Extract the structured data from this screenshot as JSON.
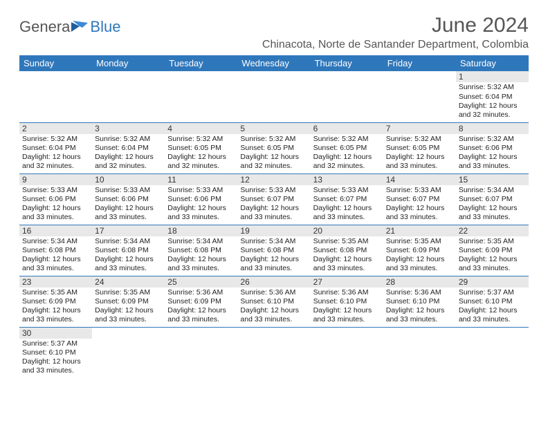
{
  "logo": {
    "text1": "Genera",
    "text2": "Blue"
  },
  "title": "June 2024",
  "subtitle": "Chinacota, Norte de Santander Department, Colombia",
  "columns": [
    "Sunday",
    "Monday",
    "Tuesday",
    "Wednesday",
    "Thursday",
    "Friday",
    "Saturday"
  ],
  "header_bg": "#2f77bb",
  "daynum_bg": "#e8e8e8",
  "border_color": "#2f77bb",
  "weeks": [
    [
      null,
      null,
      null,
      null,
      null,
      null,
      {
        "n": "1",
        "sr": "5:32 AM",
        "ss": "6:04 PM",
        "dl": "12 hours and 32 minutes."
      }
    ],
    [
      {
        "n": "2",
        "sr": "5:32 AM",
        "ss": "6:04 PM",
        "dl": "12 hours and 32 minutes."
      },
      {
        "n": "3",
        "sr": "5:32 AM",
        "ss": "6:04 PM",
        "dl": "12 hours and 32 minutes."
      },
      {
        "n": "4",
        "sr": "5:32 AM",
        "ss": "6:05 PM",
        "dl": "12 hours and 32 minutes."
      },
      {
        "n": "5",
        "sr": "5:32 AM",
        "ss": "6:05 PM",
        "dl": "12 hours and 32 minutes."
      },
      {
        "n": "6",
        "sr": "5:32 AM",
        "ss": "6:05 PM",
        "dl": "12 hours and 32 minutes."
      },
      {
        "n": "7",
        "sr": "5:32 AM",
        "ss": "6:05 PM",
        "dl": "12 hours and 33 minutes."
      },
      {
        "n": "8",
        "sr": "5:32 AM",
        "ss": "6:06 PM",
        "dl": "12 hours and 33 minutes."
      }
    ],
    [
      {
        "n": "9",
        "sr": "5:33 AM",
        "ss": "6:06 PM",
        "dl": "12 hours and 33 minutes."
      },
      {
        "n": "10",
        "sr": "5:33 AM",
        "ss": "6:06 PM",
        "dl": "12 hours and 33 minutes."
      },
      {
        "n": "11",
        "sr": "5:33 AM",
        "ss": "6:06 PM",
        "dl": "12 hours and 33 minutes."
      },
      {
        "n": "12",
        "sr": "5:33 AM",
        "ss": "6:07 PM",
        "dl": "12 hours and 33 minutes."
      },
      {
        "n": "13",
        "sr": "5:33 AM",
        "ss": "6:07 PM",
        "dl": "12 hours and 33 minutes."
      },
      {
        "n": "14",
        "sr": "5:33 AM",
        "ss": "6:07 PM",
        "dl": "12 hours and 33 minutes."
      },
      {
        "n": "15",
        "sr": "5:34 AM",
        "ss": "6:07 PM",
        "dl": "12 hours and 33 minutes."
      }
    ],
    [
      {
        "n": "16",
        "sr": "5:34 AM",
        "ss": "6:08 PM",
        "dl": "12 hours and 33 minutes."
      },
      {
        "n": "17",
        "sr": "5:34 AM",
        "ss": "6:08 PM",
        "dl": "12 hours and 33 minutes."
      },
      {
        "n": "18",
        "sr": "5:34 AM",
        "ss": "6:08 PM",
        "dl": "12 hours and 33 minutes."
      },
      {
        "n": "19",
        "sr": "5:34 AM",
        "ss": "6:08 PM",
        "dl": "12 hours and 33 minutes."
      },
      {
        "n": "20",
        "sr": "5:35 AM",
        "ss": "6:08 PM",
        "dl": "12 hours and 33 minutes."
      },
      {
        "n": "21",
        "sr": "5:35 AM",
        "ss": "6:09 PM",
        "dl": "12 hours and 33 minutes."
      },
      {
        "n": "22",
        "sr": "5:35 AM",
        "ss": "6:09 PM",
        "dl": "12 hours and 33 minutes."
      }
    ],
    [
      {
        "n": "23",
        "sr": "5:35 AM",
        "ss": "6:09 PM",
        "dl": "12 hours and 33 minutes."
      },
      {
        "n": "24",
        "sr": "5:35 AM",
        "ss": "6:09 PM",
        "dl": "12 hours and 33 minutes."
      },
      {
        "n": "25",
        "sr": "5:36 AM",
        "ss": "6:09 PM",
        "dl": "12 hours and 33 minutes."
      },
      {
        "n": "26",
        "sr": "5:36 AM",
        "ss": "6:10 PM",
        "dl": "12 hours and 33 minutes."
      },
      {
        "n": "27",
        "sr": "5:36 AM",
        "ss": "6:10 PM",
        "dl": "12 hours and 33 minutes."
      },
      {
        "n": "28",
        "sr": "5:36 AM",
        "ss": "6:10 PM",
        "dl": "12 hours and 33 minutes."
      },
      {
        "n": "29",
        "sr": "5:37 AM",
        "ss": "6:10 PM",
        "dl": "12 hours and 33 minutes."
      }
    ],
    [
      {
        "n": "30",
        "sr": "5:37 AM",
        "ss": "6:10 PM",
        "dl": "12 hours and 33 minutes."
      },
      null,
      null,
      null,
      null,
      null,
      null
    ]
  ],
  "labels": {
    "sunrise": "Sunrise:",
    "sunset": "Sunset:",
    "daylight": "Daylight:"
  }
}
